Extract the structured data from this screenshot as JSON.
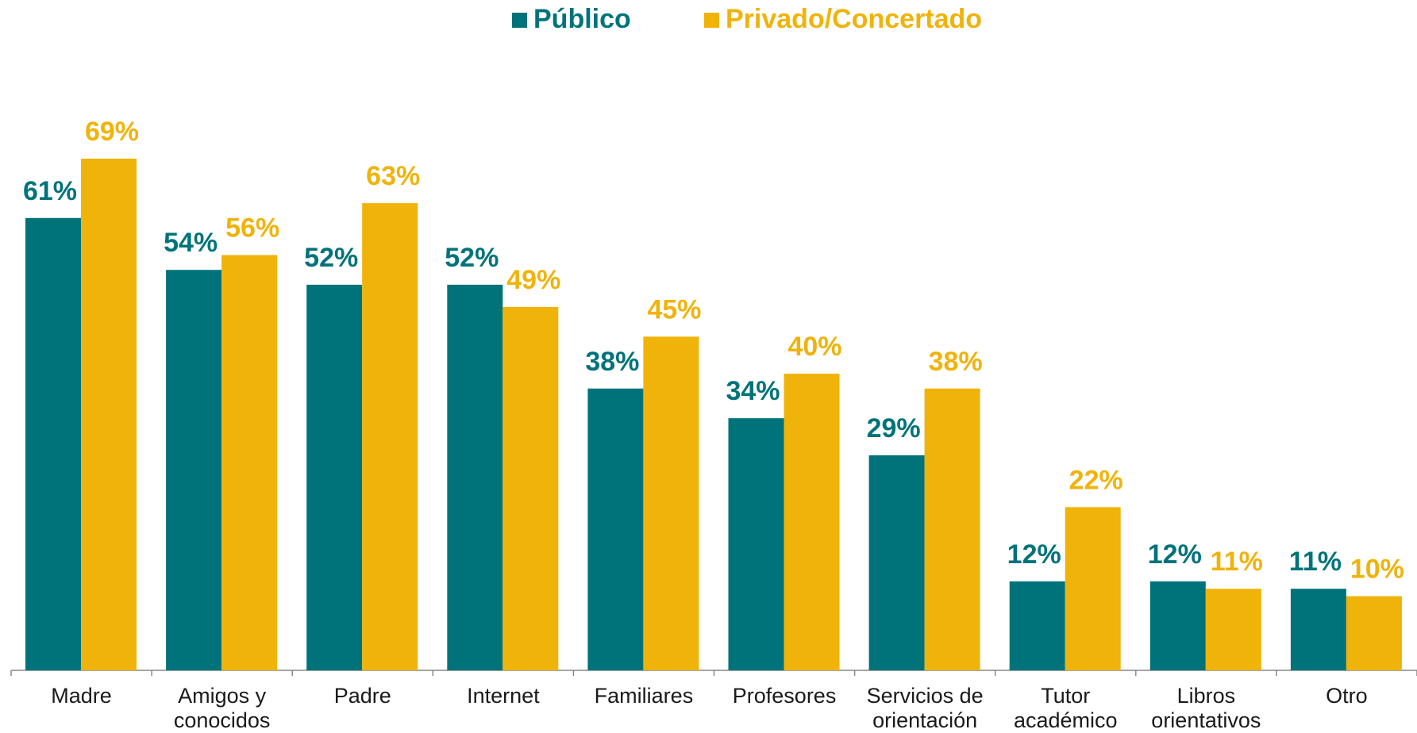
{
  "chart_data": {
    "type": "bar",
    "categories": [
      "Madre",
      "Amigos y conocidos",
      "Padre",
      "Internet",
      "Familiares",
      "Profesores",
      "Servicios de orientación",
      "Tutor académico",
      "Libros orientativos",
      "Otro"
    ],
    "series": [
      {
        "name": "Público",
        "color": "#00737a",
        "values": [
          61,
          54,
          52,
          52,
          38,
          34,
          29,
          12,
          12,
          11
        ],
        "value_labels": [
          "61%",
          "54%",
          "52%",
          "52%",
          "38%",
          "34%",
          "29%",
          "12%",
          "12%",
          "11%"
        ]
      },
      {
        "name": "Privado/Concertado",
        "color": "#f0b30a",
        "values": [
          69,
          56,
          63,
          49,
          45,
          40,
          38,
          22,
          11,
          10
        ],
        "value_labels": [
          "69%",
          "56%",
          "63%",
          "49%",
          "45%",
          "40%",
          "38%",
          "22%",
          "11%",
          "10%"
        ]
      }
    ],
    "legend": "top"
  }
}
